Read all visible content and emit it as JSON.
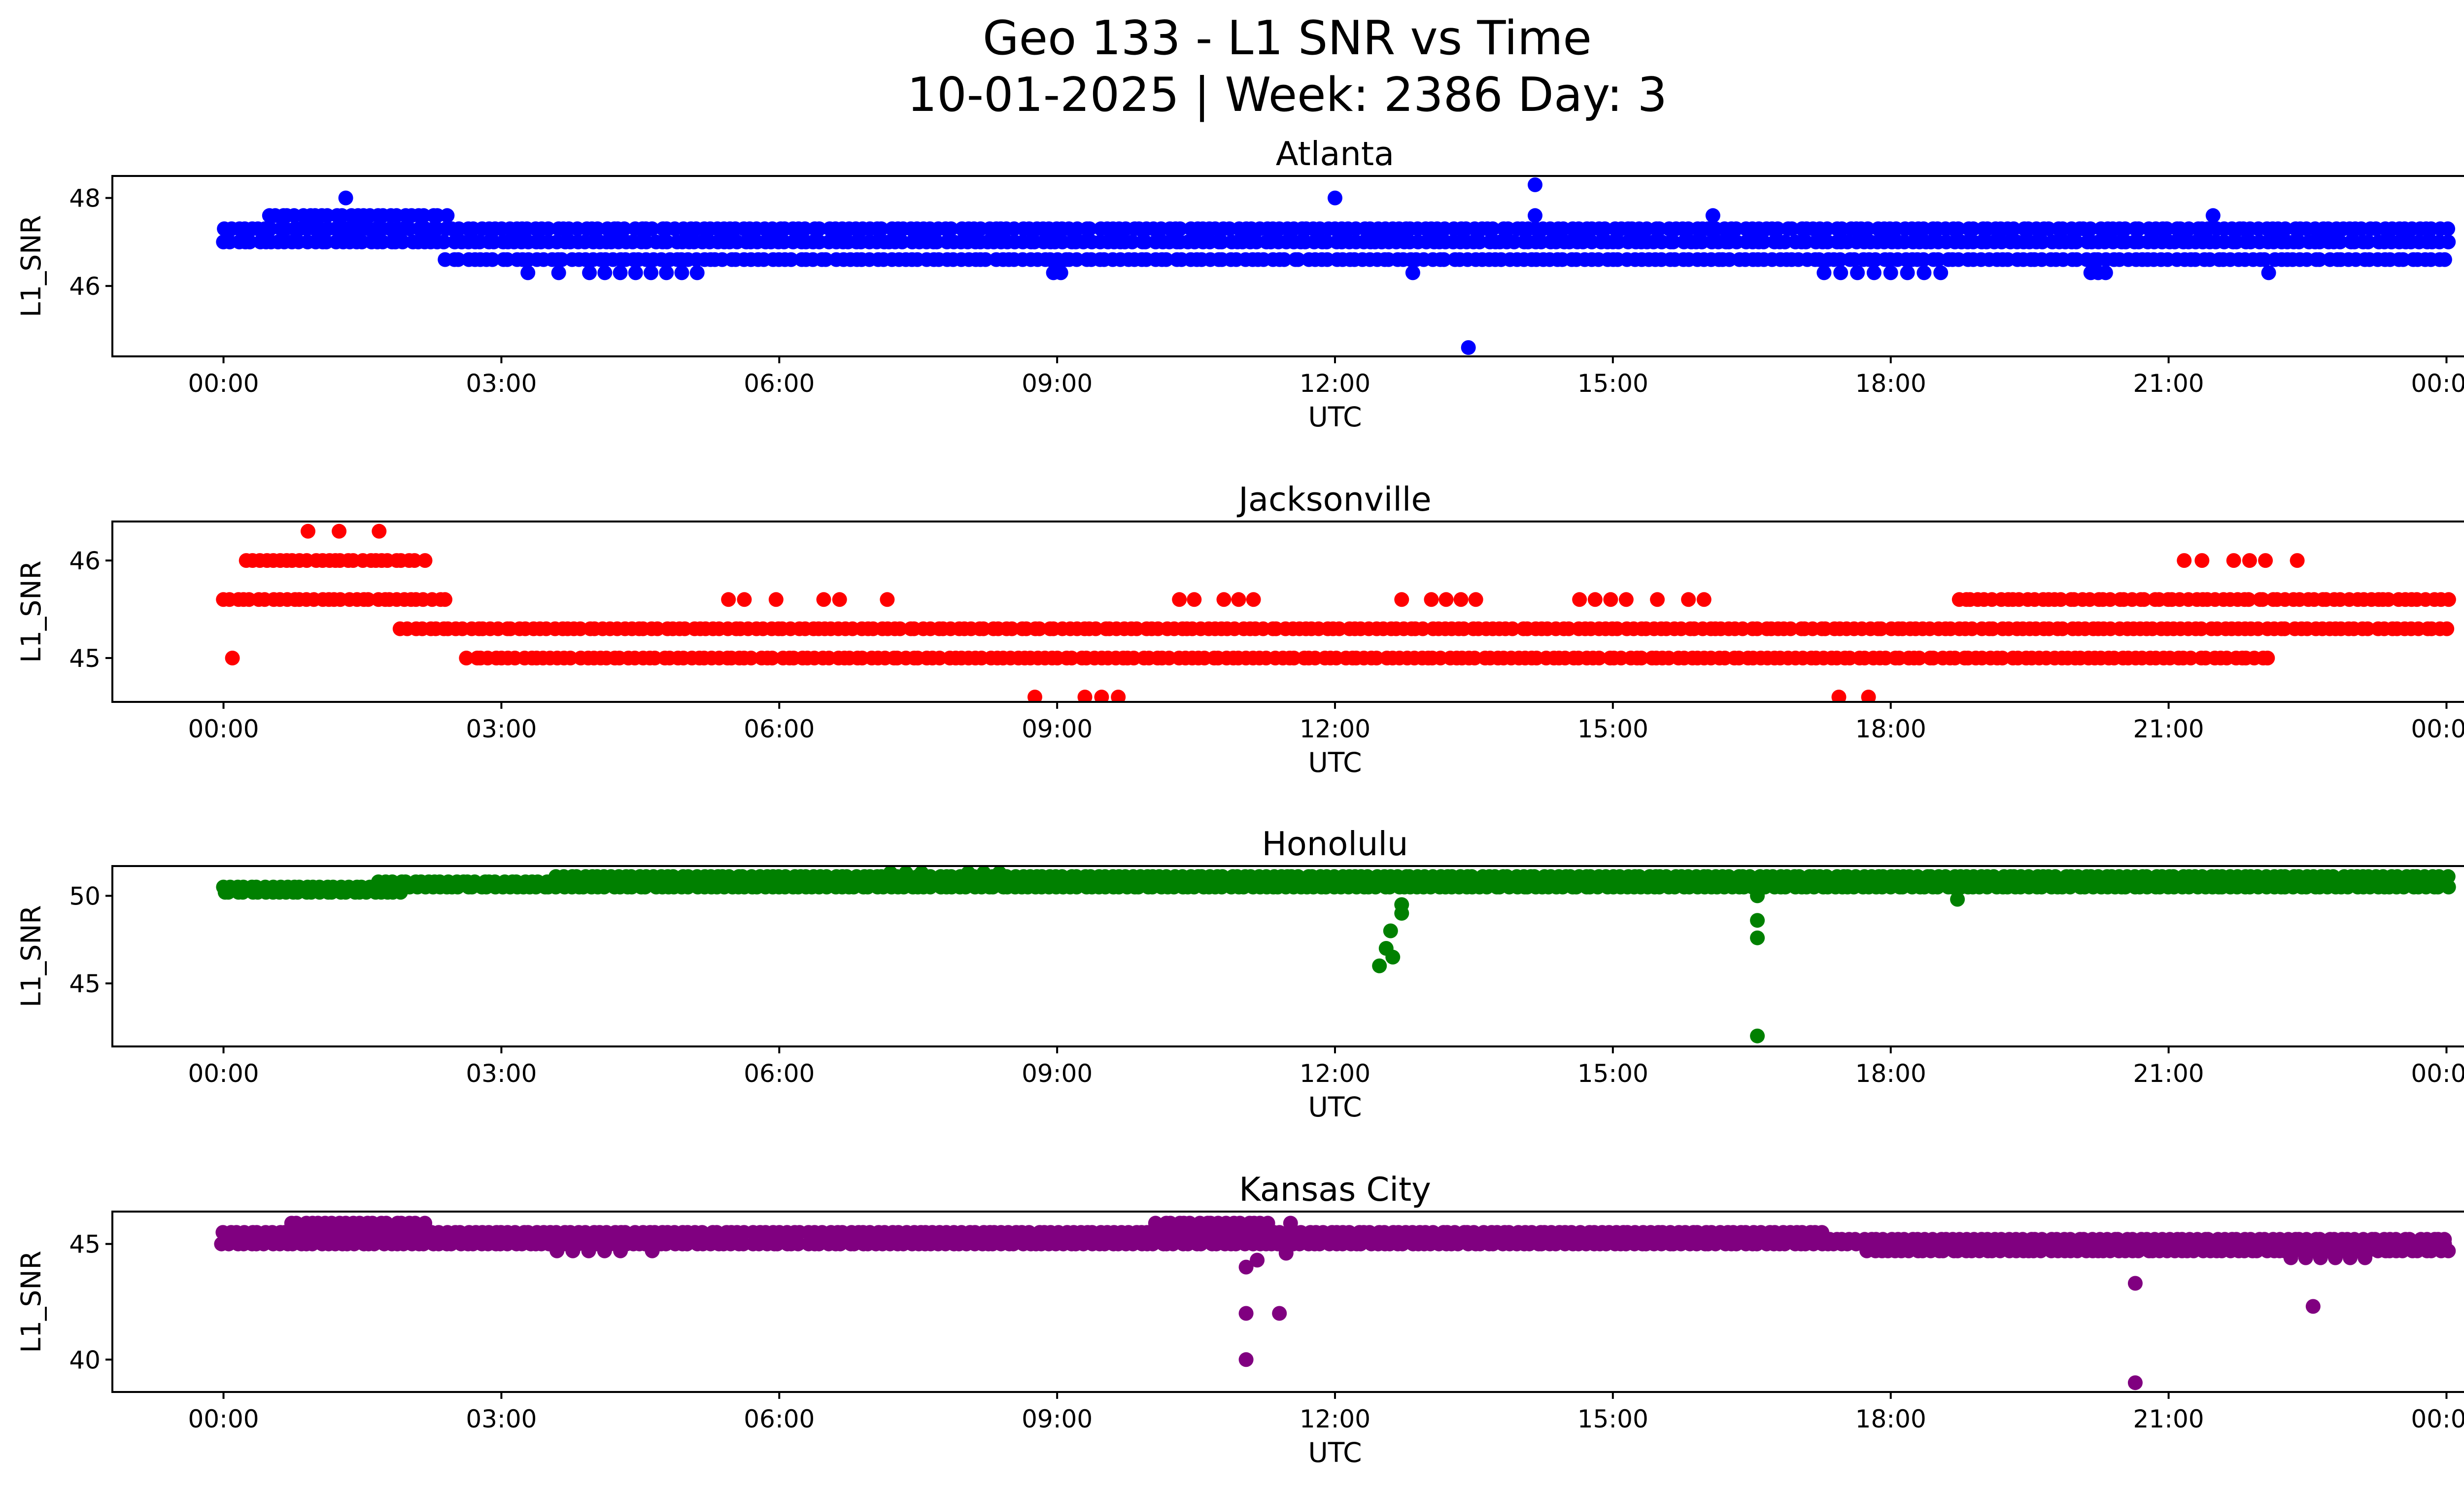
{
  "chart_data": {
    "type": "scatter",
    "title": "Geo 133 - L1 SNR vs Time",
    "subtitle": "10-01-2025 | Week: 2386 Day: 3",
    "panels": [
      {
        "name": "Atlanta",
        "color": "#0000ff",
        "xlabel": "UTC",
        "ylabel": "L1_SNR",
        "xlim": [
          -0.05,
          1.05
        ],
        "ylim": [
          44.4,
          48.5
        ],
        "yticks": [
          46,
          48
        ],
        "baseline_levels": [
          {
            "level": 46.6,
            "from": 0.1,
            "to": 1.0
          },
          {
            "level": 47.0,
            "from": 0.0,
            "to": 1.0
          },
          {
            "level": 47.3,
            "from": 0.0,
            "to": 1.0
          },
          {
            "level": 47.6,
            "from": 0.02,
            "to": 0.1
          }
        ],
        "sparse_levels": [
          {
            "level": 46.3,
            "from": 0.13,
            "to": 0.22
          },
          {
            "level": 46.3,
            "from": 0.37,
            "to": 0.38
          },
          {
            "level": 46.3,
            "from": 0.72,
            "to": 0.78
          },
          {
            "level": 46.3,
            "from": 0.84,
            "to": 0.85
          }
        ],
        "outliers": [
          [
            0.055,
            48.0
          ],
          [
            0.5,
            48.0
          ],
          [
            0.59,
            48.3
          ],
          [
            0.59,
            47.6
          ],
          [
            0.56,
            44.6
          ],
          [
            0.535,
            46.3
          ],
          [
            0.67,
            47.6
          ],
          [
            0.895,
            47.6
          ],
          [
            0.92,
            46.3
          ]
        ]
      },
      {
        "name": "Jacksonville",
        "color": "#ff0000",
        "xlabel": "UTC",
        "ylabel": "L1_SNR",
        "xlim": [
          -0.05,
          1.05
        ],
        "ylim": [
          44.55,
          46.4
        ],
        "yticks": [
          45,
          46
        ],
        "baseline_levels": [
          {
            "level": 45.0,
            "from": 0.11,
            "to": 0.92
          },
          {
            "level": 45.3,
            "from": 0.08,
            "to": 1.0
          },
          {
            "level": 45.6,
            "from": 0.0,
            "to": 0.1
          },
          {
            "level": 45.6,
            "from": 0.78,
            "to": 1.0
          },
          {
            "level": 46.0,
            "from": 0.01,
            "to": 0.09
          }
        ],
        "sparse_levels": [
          {
            "level": 45.6,
            "from": 0.22,
            "to": 0.32
          },
          {
            "level": 45.6,
            "from": 0.43,
            "to": 0.47
          },
          {
            "level": 45.6,
            "from": 0.53,
            "to": 0.57
          },
          {
            "level": 45.6,
            "from": 0.61,
            "to": 0.68
          },
          {
            "level": 44.6,
            "from": 0.35,
            "to": 0.41
          },
          {
            "level": 44.6,
            "from": 0.72,
            "to": 0.76
          },
          {
            "level": 46.0,
            "from": 0.89,
            "to": 0.94
          }
        ],
        "outliers": [
          [
            0.038,
            46.3
          ],
          [
            0.052,
            46.3
          ],
          [
            0.07,
            46.3
          ],
          [
            0.004,
            45.0
          ],
          [
            0.882,
            46.0
          ]
        ]
      },
      {
        "name": "Honolulu",
        "color": "#008000",
        "xlabel": "UTC",
        "ylabel": "L1_SNR",
        "xlim": [
          -0.05,
          1.05
        ],
        "ylim": [
          41.4,
          51.7
        ],
        "yticks": [
          45,
          50
        ],
        "baseline_levels": [
          {
            "level": 50.2,
            "from": 0.0,
            "to": 0.08
          },
          {
            "level": 50.5,
            "from": 0.0,
            "to": 1.0
          },
          {
            "level": 50.8,
            "from": 0.07,
            "to": 1.0
          },
          {
            "level": 51.1,
            "from": 0.15,
            "to": 1.0
          }
        ],
        "sparse_levels": [
          {
            "level": 51.3,
            "from": 0.3,
            "to": 0.37
          },
          {
            "level": 49.8,
            "from": 0.78,
            "to": 0.8
          }
        ],
        "outliers": [
          [
            0.52,
            46.0
          ],
          [
            0.523,
            47.0
          ],
          [
            0.525,
            48.0
          ],
          [
            0.526,
            46.5
          ],
          [
            0.53,
            49.5
          ],
          [
            0.53,
            49.0
          ],
          [
            0.69,
            50.0
          ],
          [
            0.69,
            48.6
          ],
          [
            0.69,
            47.6
          ],
          [
            0.69,
            42.0
          ]
        ]
      },
      {
        "name": "Kansas City",
        "color": "#800080",
        "xlabel": "UTC",
        "ylabel": "L1_SNR",
        "xlim": [
          -0.05,
          1.05
        ],
        "ylim": [
          38.6,
          46.4
        ],
        "yticks": [
          40,
          45
        ],
        "baseline_levels": [
          {
            "level": 45.0,
            "from": 0.0,
            "to": 1.0
          },
          {
            "level": 45.5,
            "from": 0.0,
            "to": 0.72
          },
          {
            "level": 45.2,
            "from": 0.55,
            "to": 1.0
          },
          {
            "level": 44.7,
            "from": 0.74,
            "to": 1.0
          },
          {
            "level": 45.9,
            "from": 0.03,
            "to": 0.09
          },
          {
            "level": 45.9,
            "from": 0.42,
            "to": 0.47
          }
        ],
        "sparse_levels": [
          {
            "level": 44.7,
            "from": 0.15,
            "to": 0.2
          },
          {
            "level": 44.4,
            "from": 0.93,
            "to": 0.97
          }
        ],
        "outliers": [
          [
            0.46,
            44.0
          ],
          [
            0.46,
            42.0
          ],
          [
            0.46,
            40.0
          ],
          [
            0.465,
            44.3
          ],
          [
            0.475,
            42.0
          ],
          [
            0.478,
            44.6
          ],
          [
            0.86,
            43.3
          ],
          [
            0.86,
            39.0
          ],
          [
            0.94,
            42.3
          ],
          [
            0.48,
            45.9
          ]
        ]
      }
    ],
    "xticks": [
      {
        "pos": 0.0,
        "label": "00:00"
      },
      {
        "pos": 0.125,
        "label": "03:00"
      },
      {
        "pos": 0.25,
        "label": "06:00"
      },
      {
        "pos": 0.375,
        "label": "09:00"
      },
      {
        "pos": 0.5,
        "label": "12:00"
      },
      {
        "pos": 0.625,
        "label": "15:00"
      },
      {
        "pos": 0.75,
        "label": "18:00"
      },
      {
        "pos": 0.875,
        "label": "21:00"
      },
      {
        "pos": 1.0,
        "label": "00:00"
      }
    ]
  }
}
